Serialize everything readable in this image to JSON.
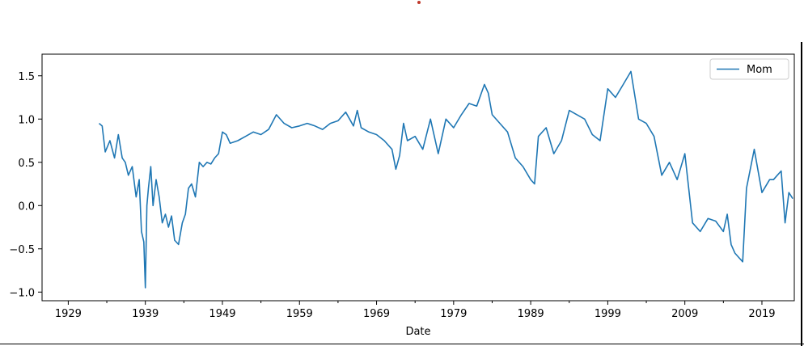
{
  "colors": {
    "line": "#1f77b4",
    "marker": "#c0392b"
  },
  "chart_data": {
    "type": "line",
    "title": "",
    "xlabel": "Date",
    "ylabel": "",
    "xlim": [
      1925.6,
      2023.2
    ],
    "ylim": [
      -1.1,
      1.75
    ],
    "x_ticks": [
      1929,
      1939,
      1949,
      1959,
      1969,
      1979,
      1989,
      1999,
      2009,
      2019
    ],
    "x_tick_labels": [
      "1929",
      "1939",
      "1949",
      "1959",
      "1969",
      "1979",
      "1989",
      "1999",
      "2009",
      "2019"
    ],
    "y_ticks": [
      -1.0,
      -0.5,
      0.0,
      0.5,
      1.0,
      1.5
    ],
    "y_tick_labels": [
      "−1.0",
      "−0.5",
      "0.0",
      "0.5",
      "1.0",
      "1.5"
    ],
    "legend": {
      "position": "top-right",
      "entries": [
        "Mom"
      ]
    },
    "series": [
      {
        "name": "Mom",
        "x": [
          1933.0,
          1933.4,
          1933.8,
          1934.4,
          1935.0,
          1935.5,
          1936.0,
          1936.4,
          1936.8,
          1937.3,
          1937.8,
          1938.2,
          1938.5,
          1938.8,
          1939.0,
          1939.2,
          1939.4,
          1939.7,
          1940.0,
          1940.4,
          1940.8,
          1941.2,
          1941.6,
          1942.0,
          1942.4,
          1942.8,
          1943.3,
          1943.8,
          1944.2,
          1944.6,
          1945.0,
          1945.5,
          1946.0,
          1946.5,
          1947.0,
          1947.5,
          1948.0,
          1948.5,
          1949.0,
          1949.5,
          1950.0,
          1951.0,
          1952.0,
          1953.0,
          1954.0,
          1955.0,
          1956.0,
          1957.0,
          1958.0,
          1959.0,
          1960.0,
          1961.0,
          1962.0,
          1963.0,
          1964.0,
          1965.0,
          1966.0,
          1966.5,
          1967.0,
          1968.0,
          1969.0,
          1970.0,
          1971.0,
          1971.5,
          1972.0,
          1972.5,
          1973.0,
          1974.0,
          1975.0,
          1976.0,
          1977.0,
          1978.0,
          1979.0,
          1980.0,
          1981.0,
          1982.0,
          1983.0,
          1983.5,
          1984.0,
          1985.0,
          1986.0,
          1987.0,
          1988.0,
          1989.0,
          1989.5,
          1990.0,
          1991.0,
          1992.0,
          1993.0,
          1994.0,
          1995.0,
          1996.0,
          1997.0,
          1998.0,
          1999.0,
          2000.0,
          2001.0,
          2002.0,
          2003.0,
          2004.0,
          2005.0,
          2006.0,
          2007.0,
          2008.0,
          2009.0,
          2010.0,
          2011.0,
          2012.0,
          2013.0,
          2014.0,
          2014.5,
          2015.0,
          2015.5,
          2016.0,
          2016.5,
          2017.0,
          2018.0,
          2019.0,
          2020.0,
          2020.5,
          2021.0,
          2021.5,
          2022.0,
          2022.5,
          2023.0
        ],
        "y": [
          0.95,
          0.92,
          0.62,
          0.75,
          0.55,
          0.82,
          0.55,
          0.5,
          0.35,
          0.45,
          0.1,
          0.3,
          -0.3,
          -0.42,
          -0.95,
          0.0,
          0.2,
          0.45,
          0.0,
          0.3,
          0.1,
          -0.2,
          -0.1,
          -0.25,
          -0.12,
          -0.4,
          -0.45,
          -0.2,
          -0.1,
          0.2,
          0.25,
          0.1,
          0.5,
          0.45,
          0.5,
          0.48,
          0.55,
          0.6,
          0.85,
          0.82,
          0.72,
          0.75,
          0.8,
          0.85,
          0.82,
          0.88,
          1.05,
          0.95,
          0.9,
          0.92,
          0.95,
          0.92,
          0.88,
          0.95,
          0.98,
          1.08,
          0.92,
          1.1,
          0.9,
          0.85,
          0.82,
          0.75,
          0.65,
          0.42,
          0.58,
          0.95,
          0.75,
          0.8,
          0.65,
          1.0,
          0.6,
          1.0,
          0.9,
          1.05,
          1.18,
          1.15,
          1.4,
          1.3,
          1.05,
          0.95,
          0.85,
          0.55,
          0.45,
          0.3,
          0.25,
          0.8,
          0.9,
          0.6,
          0.75,
          1.1,
          1.05,
          1.0,
          0.82,
          0.75,
          1.35,
          1.25,
          1.4,
          1.55,
          1.0,
          0.95,
          0.8,
          0.35,
          0.5,
          0.3,
          0.6,
          -0.2,
          -0.3,
          -0.15,
          -0.18,
          -0.3,
          -0.1,
          -0.45,
          -0.55,
          -0.6,
          -0.65,
          0.2,
          0.65,
          0.15,
          0.3,
          0.3,
          0.35,
          0.4,
          -0.2,
          0.15,
          0.08
        ]
      }
    ]
  }
}
